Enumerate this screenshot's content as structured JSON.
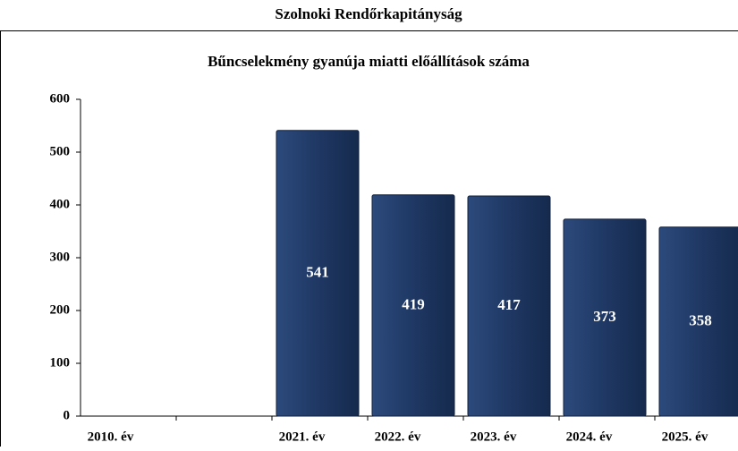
{
  "header": "Szolnoki Rendőrkapitányság",
  "chart_data": {
    "type": "bar",
    "title": "Bűncselekmény gyanúja miatti előállítások száma",
    "categories": [
      "2010. év",
      null,
      "2021. év",
      "2022. év",
      "2023. év",
      "2024. év",
      "2025. év"
    ],
    "values": [
      null,
      null,
      541,
      419,
      417,
      373,
      358
    ],
    "color": "#1f3864",
    "ylim": [
      0,
      600
    ],
    "yticks": [
      0,
      100,
      200,
      300,
      400,
      500,
      600
    ],
    "grid": false
  }
}
